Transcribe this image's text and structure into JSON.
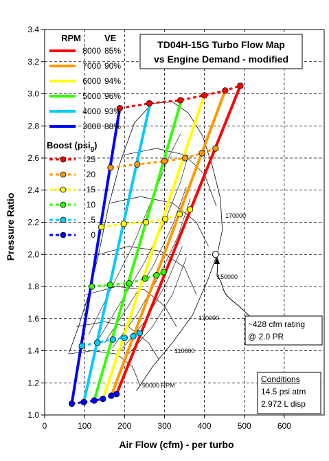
{
  "chart_data": {
    "type": "line",
    "title": [
      "TD04H-15G Turbo Flow Map",
      "vs Engine Demand - modified"
    ],
    "xlabel": "Air Flow (cfm) - per turbo",
    "ylabel": "Pressure Ratio",
    "xlim": [
      0,
      700
    ],
    "ylim": [
      1.0,
      3.4
    ],
    "xticks": [
      "0",
      "100",
      "200",
      "300",
      "400",
      "500",
      "600"
    ],
    "yticks": [
      "1.0",
      "1.2",
      "1.4",
      "1.6",
      "1.8",
      "2.0",
      "2.2",
      "2.4",
      "2.6",
      "2.8",
      "3.0",
      "3.2",
      "3.4"
    ],
    "grid": true,
    "legend_rpm": {
      "header_rpm": "RPM",
      "header_ve": "VE",
      "items": [
        {
          "rpm": "8000",
          "ve": "85%",
          "color": "#ff0000"
        },
        {
          "rpm": "7000",
          "ve": "90%",
          "color": "#ff9900"
        },
        {
          "rpm": "6000",
          "ve": "94%",
          "color": "#ffff00"
        },
        {
          "rpm": "5000",
          "ve": "96%",
          "color": "#33ff00"
        },
        {
          "rpm": "4000",
          "ve": "93%",
          "color": "#00ccff"
        },
        {
          "rpm": "3000",
          "ve": "88%",
          "color": "#0000ff"
        }
      ]
    },
    "legend_boost": {
      "header": "Boost (psi",
      "header_sub": "g",
      "header_end": ")",
      "items": [
        {
          "psi": "25",
          "color": "#ff0000"
        },
        {
          "psi": "20",
          "color": "#ff9900"
        },
        {
          "psi": "15",
          "color": "#ffff00"
        },
        {
          "psi": "10",
          "color": "#33ff00"
        },
        {
          "psi": "5",
          "color": "#00ccff"
        },
        {
          "psi": "0",
          "color": "#0000ff"
        }
      ]
    },
    "series": [
      {
        "name": "8000",
        "color": "#ff0000",
        "x": [
          180,
          490
        ],
        "y": [
          1.13,
          3.05
        ]
      },
      {
        "name": "7000",
        "color": "#ff9900",
        "x": [
          167,
          452
        ],
        "y": [
          1.12,
          3.02
        ]
      },
      {
        "name": "6000",
        "color": "#ffff00",
        "x": [
          146,
          398
        ],
        "y": [
          1.1,
          2.98
        ]
      },
      {
        "name": "5000",
        "color": "#33ff00",
        "x": [
          124,
          340
        ],
        "y": [
          1.09,
          2.94
        ]
      },
      {
        "name": "4000",
        "color": "#00ccff",
        "x": [
          98,
          264
        ],
        "y": [
          1.08,
          2.94
        ]
      },
      {
        "name": "3000",
        "color": "#0000ff",
        "x": [
          68,
          188
        ],
        "y": [
          1.07,
          2.91
        ]
      }
    ],
    "boost_lines": [
      {
        "psi": "25",
        "color": "#ff0000",
        "x": [
          188,
          262,
          340,
          400,
          452,
          490
        ],
        "y": [
          2.91,
          2.94,
          2.96,
          2.99,
          3.02,
          3.05
        ]
      },
      {
        "psi": "20",
        "color": "#ff9900",
        "x": [
          165,
          232,
          300,
          352,
          394,
          428
        ],
        "y": [
          2.54,
          2.56,
          2.58,
          2.6,
          2.63,
          2.66
        ]
      },
      {
        "psi": "15",
        "color": "#ffff00",
        "x": [
          142,
          198,
          254,
          302,
          338,
          364
        ],
        "y": [
          2.17,
          2.19,
          2.2,
          2.22,
          2.25,
          2.28
        ]
      },
      {
        "psi": "10",
        "color": "#33ff00",
        "x": [
          118,
          164,
          212,
          252,
          280,
          298
        ],
        "y": [
          1.8,
          1.81,
          1.82,
          1.85,
          1.87,
          1.89
        ]
      },
      {
        "psi": "5",
        "color": "#00ccff",
        "x": [
          93,
          132,
          171,
          200,
          222,
          238
        ],
        "y": [
          1.43,
          1.45,
          1.47,
          1.48,
          1.49,
          1.51
        ]
      },
      {
        "psi": "0",
        "color": "#0000ff",
        "x": [
          68,
          98,
          124,
          146,
          167,
          180
        ],
        "y": [
          1.07,
          1.08,
          1.09,
          1.1,
          1.12,
          1.13
        ]
      }
    ],
    "rating_point": {
      "x": 428,
      "y": 2.0
    },
    "speed_labels": [
      "170000",
      "150000",
      "130000",
      "110000",
      "90000 RPM"
    ],
    "annotation": [
      "~428 cfm rating",
      "@ 2.0 PR"
    ],
    "conditions": {
      "heading": "Conditions",
      "lines": [
        "14.5 psi atm",
        "2.972 L disp"
      ]
    }
  }
}
